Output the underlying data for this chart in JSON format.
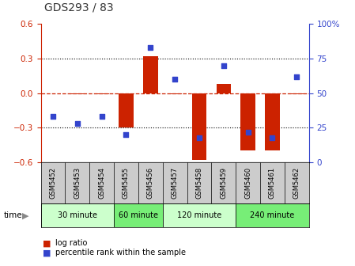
{
  "title": "GDS293 / 83",
  "samples": [
    "GSM5452",
    "GSM5453",
    "GSM5454",
    "GSM5455",
    "GSM5456",
    "GSM5457",
    "GSM5458",
    "GSM5459",
    "GSM5460",
    "GSM5461",
    "GSM5462"
  ],
  "log_ratio": [
    0.0,
    -0.01,
    -0.01,
    -0.3,
    0.32,
    -0.01,
    -0.58,
    0.08,
    -0.5,
    -0.5,
    -0.01
  ],
  "percentile_rank": [
    33,
    28,
    33,
    20,
    83,
    60,
    18,
    70,
    22,
    18,
    62
  ],
  "time_groups": [
    {
      "label": "30 minute",
      "start": 0,
      "end": 2,
      "color": "#ccffcc"
    },
    {
      "label": "60 minute",
      "start": 3,
      "end": 4,
      "color": "#77ee77"
    },
    {
      "label": "120 minute",
      "start": 5,
      "end": 7,
      "color": "#ccffcc"
    },
    {
      "label": "240 minute",
      "start": 8,
      "end": 10,
      "color": "#77ee77"
    }
  ],
  "bar_color": "#cc2200",
  "dot_color": "#3344cc",
  "ylim_left": [
    -0.6,
    0.6
  ],
  "ylim_right": [
    0,
    100
  ],
  "yticks_left": [
    -0.6,
    -0.3,
    0.0,
    0.3,
    0.6
  ],
  "yticks_right": [
    0,
    25,
    50,
    75,
    100
  ],
  "hline_color": "#cc2200",
  "background_color": "#ffffff",
  "tick_area_color": "#cccccc",
  "time_label": "time",
  "legend_log_ratio": "log ratio",
  "legend_percentile": "percentile rank within the sample"
}
